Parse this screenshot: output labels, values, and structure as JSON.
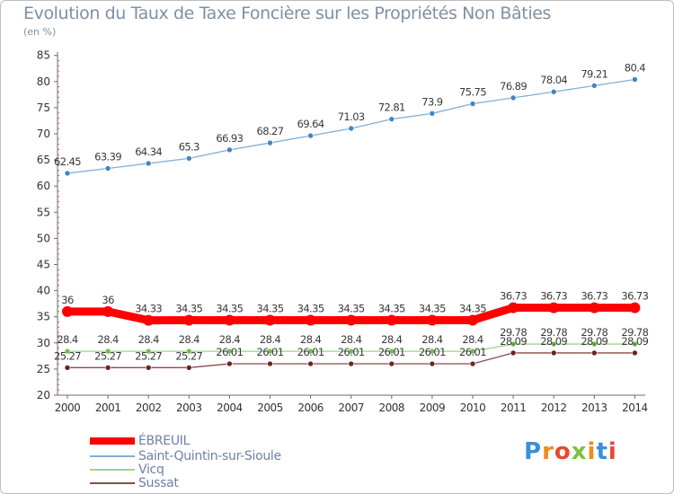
{
  "title": "Evolution du Taux de Taxe Foncière sur les Propriétés Non Bâties",
  "unit_label": "(en %)",
  "logo_text": "Proxiti",
  "chart_data": {
    "type": "line",
    "title": "Evolution du Taux de Taxe Foncière sur les Propriétés Non Bâties",
    "ylabel": "(en %)",
    "xlabel": "",
    "categories": [
      "2000",
      "2001",
      "2002",
      "2003",
      "2004",
      "2005",
      "2006",
      "2007",
      "2008",
      "2009",
      "2010",
      "2011",
      "2012",
      "2013",
      "2014"
    ],
    "ylim": [
      20,
      85
    ],
    "yticks": [
      20,
      25,
      30,
      35,
      40,
      45,
      50,
      55,
      60,
      65,
      70,
      75,
      80,
      85
    ],
    "grid": false,
    "legend_position": "bottom-left",
    "series": [
      {
        "name": "ÉBREUIL",
        "color": "#ff0000",
        "thick": true,
        "values": [
          36,
          36,
          34.33,
          34.35,
          34.35,
          34.35,
          34.35,
          34.35,
          34.35,
          34.35,
          34.35,
          36.73,
          36.73,
          36.73,
          36.73
        ],
        "labels": [
          "36",
          "36",
          "34.33",
          "34.35",
          "34.35",
          "34.35",
          "34.35",
          "34.35",
          "34.35",
          "34.35",
          "34.35",
          "36.73",
          "36.73",
          "36.73",
          "36.73"
        ]
      },
      {
        "name": "Saint-Quintin-sur-Sioule",
        "color": "#7fb0d8",
        "marker": "#3f86c3",
        "values": [
          62.45,
          63.39,
          64.34,
          65.3,
          66.93,
          68.27,
          69.64,
          71.03,
          72.81,
          73.9,
          75.75,
          76.89,
          78.04,
          79.21,
          80.4
        ],
        "labels": [
          "62.45",
          "63.39",
          "64.34",
          "65.3",
          "66.93",
          "68.27",
          "69.64",
          "71.03",
          "72.81",
          "73.9",
          "75.75",
          "76.89",
          "78.04",
          "79.21",
          "80.4"
        ]
      },
      {
        "name": "Vicq",
        "color": "#9ed68a",
        "marker": "#6cc04a",
        "values": [
          28.4,
          28.4,
          28.4,
          28.4,
          28.4,
          28.4,
          28.4,
          28.4,
          28.4,
          28.4,
          28.4,
          29.78,
          29.78,
          29.78,
          29.78
        ],
        "labels": [
          "28.4",
          "28.4",
          "28.4",
          "28.4",
          "28.4",
          "28.4",
          "28.4",
          "28.4",
          "28.4",
          "28.4",
          "28.4",
          "29.78",
          "29.78",
          "29.78",
          "29.78"
        ]
      },
      {
        "name": "Sussat",
        "color": "#8a4a4a",
        "marker": "#6b2323",
        "values": [
          25.27,
          25.27,
          25.27,
          25.27,
          26.01,
          26.01,
          26.01,
          26.01,
          26.01,
          26.01,
          26.01,
          28.09,
          28.09,
          28.09,
          28.09
        ],
        "labels": [
          "25.27",
          "25.27",
          "25.27",
          "25.27",
          "26.01",
          "26.01",
          "26.01",
          "26.01",
          "26.01",
          "26.01",
          "26.01",
          "28.09",
          "28.09",
          "28.09",
          "28.09"
        ]
      }
    ]
  }
}
